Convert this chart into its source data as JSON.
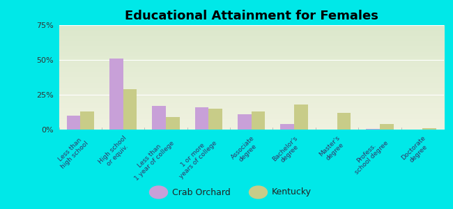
{
  "title": "Educational Attainment for Females",
  "categories": [
    "Less than\nhigh school",
    "High school\nor equiv.",
    "Less than\n1 year of college",
    "1 or more\nyears of college",
    "Associate\ndegree",
    "Bachelor's\ndegree",
    "Master's\ndegree",
    "Profess.\nschool degree",
    "Doctorate\ndegree"
  ],
  "crab_orchard": [
    10,
    51,
    17,
    16,
    11,
    4,
    0,
    0.5,
    0.2
  ],
  "kentucky": [
    13,
    29,
    9,
    15,
    13,
    18,
    12,
    4,
    1
  ],
  "crab_orchard_color": "#c8a0d8",
  "kentucky_color": "#c8cc88",
  "background_color": "#00e8e8",
  "plot_bg_top": "#dce8cc",
  "plot_bg_bottom": "#f0f2e0",
  "ylim": [
    0,
    75
  ],
  "yticks": [
    0,
    25,
    50,
    75
  ],
  "ytick_labels": [
    "0%",
    "25%",
    "50%",
    "75%"
  ],
  "bar_width": 0.32,
  "title_fontsize": 13,
  "legend_labels": [
    "Crab Orchard",
    "Kentucky"
  ]
}
